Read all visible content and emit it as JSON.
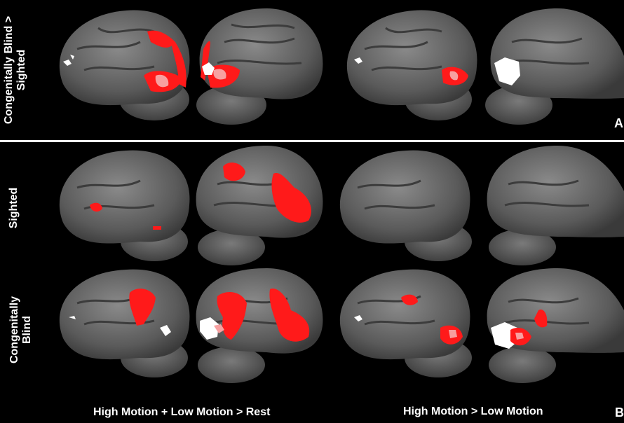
{
  "panel_a": {
    "row_label_line1": "Congenitally Blind >",
    "row_label_line2": "Sighted",
    "letter": "A"
  },
  "panel_b": {
    "row1_label": "Sighted",
    "row2_label_line1": "Congenitally",
    "row2_label_line2": "Blind",
    "caption_left": "High Motion + Low Motion > Rest",
    "caption_right": "High Motion > Low Motion",
    "letter": "B"
  },
  "colors": {
    "background": "#000000",
    "brain_surface": "#5f5f5f",
    "activation": "#ff1a1a",
    "overlap": "#f7a0a0",
    "mask": "#ffffff"
  }
}
